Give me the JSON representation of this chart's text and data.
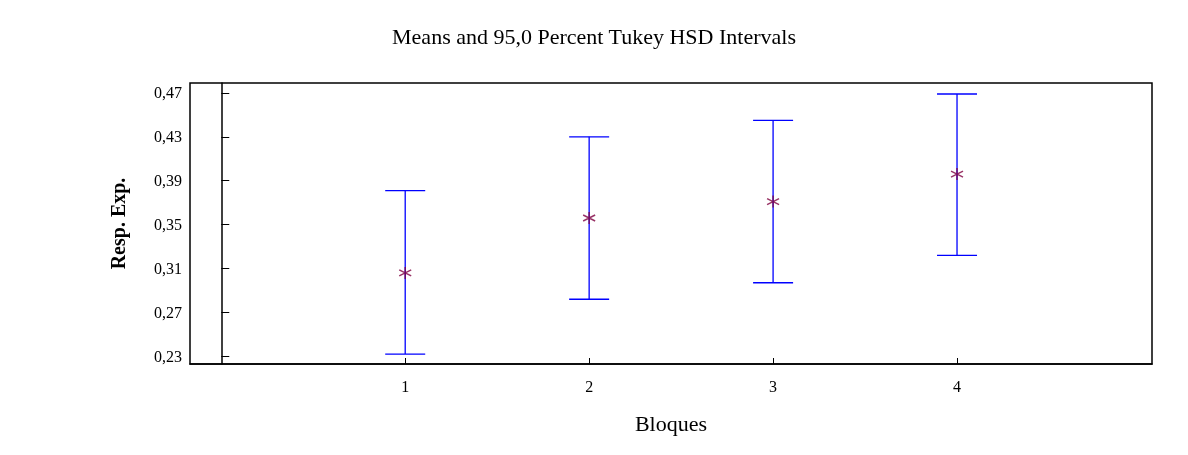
{
  "chart_data": {
    "type": "scatter",
    "title": "Means and 95,0 Percent Tukey HSD Intervals",
    "xlabel": "Bloques",
    "ylabel": "Resp. Exp.",
    "x": [
      1,
      2,
      3,
      4
    ],
    "series": [
      {
        "color": "#800040",
        "values": [
          0.306,
          0.356,
          0.371,
          0.396
        ],
        "errors": [
          [
            0.232,
            0.381
          ],
          [
            0.282,
            0.43
          ],
          [
            0.297,
            0.445
          ],
          [
            0.322,
            0.469
          ]
        ]
      }
    ],
    "marker": "cross",
    "xlim": [
      -0.17,
      5.06
    ],
    "xticks": [
      1,
      2,
      3,
      4
    ],
    "ylim": [
      0.223,
      0.479
    ],
    "yticks": [
      {
        "value": 0.23,
        "label": "0,23"
      },
      {
        "value": 0.27,
        "label": "0,27"
      },
      {
        "value": 0.31,
        "label": "0,31"
      },
      {
        "value": 0.35,
        "label": "0,35"
      },
      {
        "value": 0.39,
        "label": "0,39"
      },
      {
        "value": 0.43,
        "label": "0,43"
      },
      {
        "value": 0.47,
        "label": "0,47"
      }
    ],
    "grid": false
  }
}
